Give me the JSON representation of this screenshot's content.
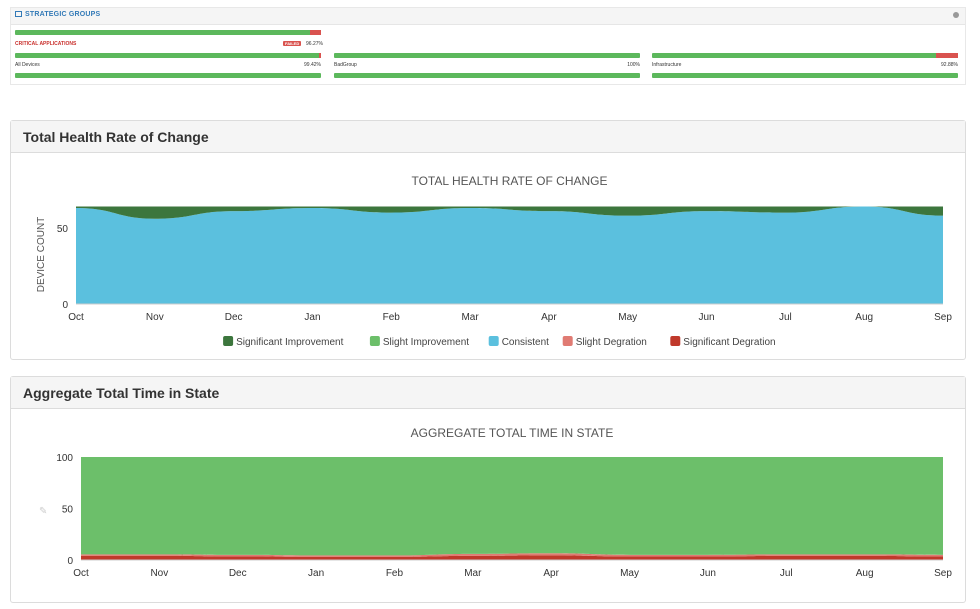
{
  "strategic_groups": {
    "title": "STRATEGIC GROUPS",
    "critical": {
      "label": "CRITICAL APPLICATIONS",
      "badge": "FAILED",
      "percent": "96.27%",
      "value": 96.27
    },
    "groups": [
      {
        "name": "All Devices",
        "percent": "99.42%",
        "value": 99.42
      },
      {
        "name": "BadGroup",
        "percent": "100%",
        "value": 100
      },
      {
        "name": "Infrastructure",
        "percent": "92.88%",
        "value": 92.88
      }
    ]
  },
  "panel1": {
    "title": "Total Health Rate of Change"
  },
  "panel2": {
    "title": "Aggregate Total Time in State"
  },
  "legend": [
    {
      "name": "Significant Improvement",
      "color": "#3c763d"
    },
    {
      "name": "Slight Improvement",
      "color": "#6cbf6a"
    },
    {
      "name": "Consistent",
      "color": "#5bc0de"
    },
    {
      "name": "Slight Degration",
      "color": "#e07b73"
    },
    {
      "name": "Significant Degration",
      "color": "#c0392b"
    }
  ],
  "chart_data": [
    {
      "type": "area",
      "title": "TOTAL HEALTH RATE OF CHANGE",
      "ylabel": "DEVICE COUNT",
      "xlabel": "",
      "categories": [
        "Oct",
        "Nov",
        "Dec",
        "Jan",
        "Feb",
        "Mar",
        "Apr",
        "May",
        "Jun",
        "Jul",
        "Aug",
        "Sep"
      ],
      "ylim": [
        0,
        65
      ],
      "yticks": [
        0,
        50
      ],
      "stacked": true,
      "series": [
        {
          "name": "Consistent",
          "values": [
            63,
            56,
            61,
            63,
            60,
            63,
            61,
            58,
            61,
            60,
            64,
            58
          ]
        },
        {
          "name": "Significant Improvement",
          "values": [
            1,
            8,
            3,
            1,
            4,
            1,
            3,
            6,
            3,
            4,
            0,
            6
          ]
        }
      ]
    },
    {
      "type": "area",
      "title": "AGGREGATE TOTAL TIME IN STATE",
      "ylabel": "",
      "xlabel": "",
      "categories": [
        "Oct",
        "Nov",
        "Dec",
        "Jan",
        "Feb",
        "Mar",
        "Apr",
        "May",
        "Jun",
        "Jul",
        "Aug",
        "Sep"
      ],
      "ylim": [
        0,
        100
      ],
      "yticks": [
        0,
        50,
        100
      ],
      "stacked": true,
      "series": [
        {
          "name": "Significant Degration",
          "values": [
            4,
            4,
            3.5,
            3,
            3,
            4,
            4.5,
            3.5,
            3.5,
            4,
            4,
            3.5
          ]
        },
        {
          "name": "Slight Degration",
          "values": [
            1.5,
            1.5,
            1.5,
            1.5,
            1.5,
            2,
            2,
            1.5,
            1.5,
            1.5,
            1.5,
            1.5
          ]
        },
        {
          "name": "Slight Improvement",
          "values": [
            94.5,
            94.5,
            95,
            95.5,
            95.5,
            94,
            93.5,
            95,
            95,
            94.5,
            94.5,
            95
          ]
        }
      ]
    }
  ]
}
